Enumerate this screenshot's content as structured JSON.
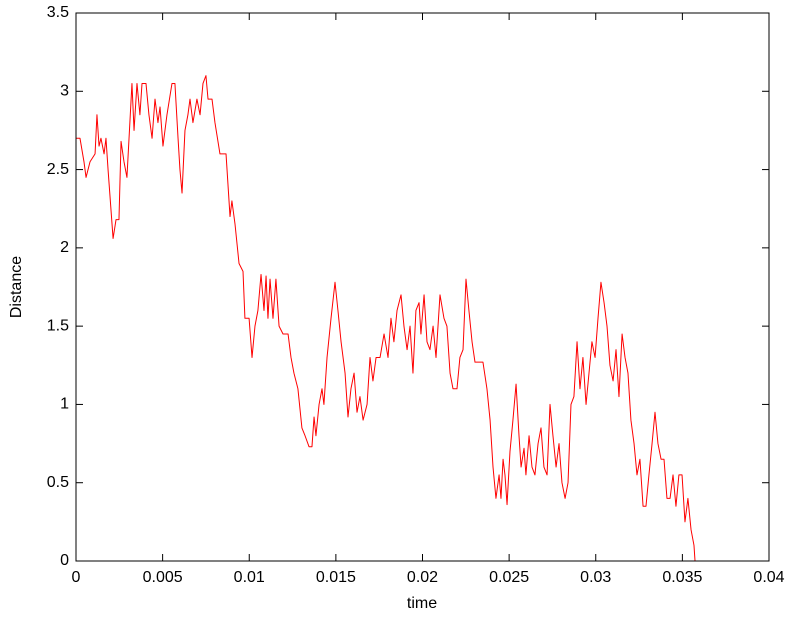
{
  "chart_data": {
    "type": "line",
    "xlabel": "time",
    "ylabel": "Distance",
    "color": "#ff0000",
    "xlim": [
      0,
      0.04
    ],
    "ylim": [
      0,
      3.5
    ],
    "xticks": [
      0,
      0.005,
      0.01,
      0.015,
      0.02,
      0.025,
      0.03,
      0.035,
      0.04
    ],
    "yticks": [
      0,
      0.5,
      1,
      1.5,
      2,
      2.5,
      3,
      3.5
    ],
    "grid": false,
    "x": [
      0,
      0.00023,
      0.00046,
      0.00058,
      0.00081,
      0.0011,
      0.00121,
      0.00133,
      0.00144,
      0.00162,
      0.00173,
      0.00185,
      0.00214,
      0.00231,
      0.00248,
      0.0026,
      0.00277,
      0.00294,
      0.00323,
      0.00335,
      0.00352,
      0.00369,
      0.00381,
      0.00404,
      0.00421,
      0.00439,
      0.00456,
      0.00473,
      0.00485,
      0.00502,
      0.00525,
      0.00554,
      0.00571,
      0.00589,
      0.006,
      0.00612,
      0.00629,
      0.00646,
      0.00658,
      0.00675,
      0.00698,
      0.00716,
      0.00733,
      0.0075,
      0.00762,
      0.00785,
      0.00802,
      0.00831,
      0.00866,
      0.00889,
      0.009,
      0.00918,
      0.00941,
      0.00964,
      0.00975,
      0.00999,
      0.01016,
      0.01033,
      0.0105,
      0.01068,
      0.01085,
      0.01097,
      0.01108,
      0.0112,
      0.01137,
      0.01154,
      0.01172,
      0.01195,
      0.01224,
      0.01241,
      0.01258,
      0.01281,
      0.01304,
      0.01322,
      0.01345,
      0.01362,
      0.01374,
      0.01385,
      0.01403,
      0.0142,
      0.01431,
      0.01449,
      0.01472,
      0.01495,
      0.01512,
      0.0153,
      0.01553,
      0.0157,
      0.01587,
      0.01605,
      0.01622,
      0.01639,
      0.01657,
      0.0168,
      0.01697,
      0.01714,
      0.01732,
      0.01755,
      0.01778,
      0.01801,
      0.01818,
      0.01835,
      0.01853,
      0.01876,
      0.01893,
      0.01911,
      0.01928,
      0.01945,
      0.01962,
      0.0198,
      0.01991,
      0.02009,
      0.02026,
      0.02043,
      0.02061,
      0.02078,
      0.02101,
      0.02124,
      0.02141,
      0.02159,
      0.02176,
      0.02199,
      0.02216,
      0.02234,
      0.02251,
      0.02268,
      0.02286,
      0.02303,
      0.02349,
      0.02372,
      0.0239,
      0.02407,
      0.02424,
      0.02442,
      0.02453,
      0.02465,
      0.02476,
      0.02488,
      0.02505,
      0.02522,
      0.0254,
      0.02557,
      0.02569,
      0.02586,
      0.02597,
      0.02615,
      0.02632,
      0.02649,
      0.02667,
      0.02684,
      0.02701,
      0.02719,
      0.02736,
      0.02753,
      0.02771,
      0.02788,
      0.02805,
      0.02823,
      0.0284,
      0.02857,
      0.02874,
      0.02892,
      0.02909,
      0.02926,
      0.02944,
      0.02961,
      0.02978,
      0.02996,
      0.03013,
      0.0303,
      0.03048,
      0.03065,
      0.03082,
      0.031,
      0.03117,
      0.03134,
      0.03152,
      0.03169,
      0.03186,
      0.03203,
      0.03221,
      0.03238,
      0.03255,
      0.03273,
      0.0329,
      0.03307,
      0.03325,
      0.03342,
      0.03359,
      0.03377,
      0.03394,
      0.03411,
      0.03429,
      0.03446,
      0.03463,
      0.0348,
      0.03498,
      0.03515,
      0.03532,
      0.0355,
      0.03567,
      0.03573
    ],
    "values": [
      2.7,
      2.7,
      2.55,
      2.45,
      2.55,
      2.6,
      2.85,
      2.65,
      2.7,
      2.6,
      2.7,
      2.5,
      2.06,
      2.18,
      2.18,
      2.68,
      2.55,
      2.45,
      3.05,
      2.75,
      3.05,
      2.85,
      3.05,
      3.05,
      2.85,
      2.7,
      2.95,
      2.8,
      2.9,
      2.65,
      2.85,
      3.05,
      3.05,
      2.7,
      2.5,
      2.35,
      2.75,
      2.85,
      2.95,
      2.8,
      2.95,
      2.85,
      3.05,
      3.1,
      2.95,
      2.95,
      2.8,
      2.6,
      2.6,
      2.2,
      2.3,
      2.15,
      1.9,
      1.85,
      1.55,
      1.55,
      1.3,
      1.5,
      1.6,
      1.83,
      1.6,
      1.82,
      1.55,
      1.8,
      1.55,
      1.8,
      1.5,
      1.45,
      1.45,
      1.3,
      1.2,
      1.1,
      0.85,
      0.8,
      0.73,
      0.73,
      0.92,
      0.8,
      1.0,
      1.1,
      1.0,
      1.3,
      1.55,
      1.78,
      1.6,
      1.4,
      1.2,
      0.92,
      1.1,
      1.2,
      0.95,
      1.05,
      0.9,
      1.0,
      1.3,
      1.15,
      1.3,
      1.3,
      1.45,
      1.3,
      1.55,
      1.4,
      1.6,
      1.7,
      1.5,
      1.35,
      1.5,
      1.2,
      1.6,
      1.65,
      1.45,
      1.7,
      1.4,
      1.35,
      1.5,
      1.3,
      1.7,
      1.55,
      1.5,
      1.2,
      1.1,
      1.1,
      1.3,
      1.35,
      1.8,
      1.6,
      1.4,
      1.27,
      1.27,
      1.1,
      0.9,
      0.6,
      0.4,
      0.55,
      0.4,
      0.65,
      0.55,
      0.36,
      0.7,
      0.9,
      1.13,
      0.8,
      0.6,
      0.72,
      0.55,
      0.8,
      0.6,
      0.55,
      0.75,
      0.85,
      0.6,
      0.55,
      1.0,
      0.8,
      0.6,
      0.75,
      0.5,
      0.4,
      0.5,
      1.0,
      1.05,
      1.4,
      1.1,
      1.3,
      1.0,
      1.2,
      1.4,
      1.3,
      1.55,
      1.78,
      1.65,
      1.5,
      1.25,
      1.15,
      1.35,
      1.05,
      1.45,
      1.3,
      1.2,
      0.9,
      0.75,
      0.55,
      0.65,
      0.35,
      0.35,
      0.55,
      0.75,
      0.95,
      0.75,
      0.65,
      0.65,
      0.4,
      0.4,
      0.55,
      0.35,
      0.55,
      0.55,
      0.25,
      0.4,
      0.2,
      0.1,
      0
    ]
  }
}
